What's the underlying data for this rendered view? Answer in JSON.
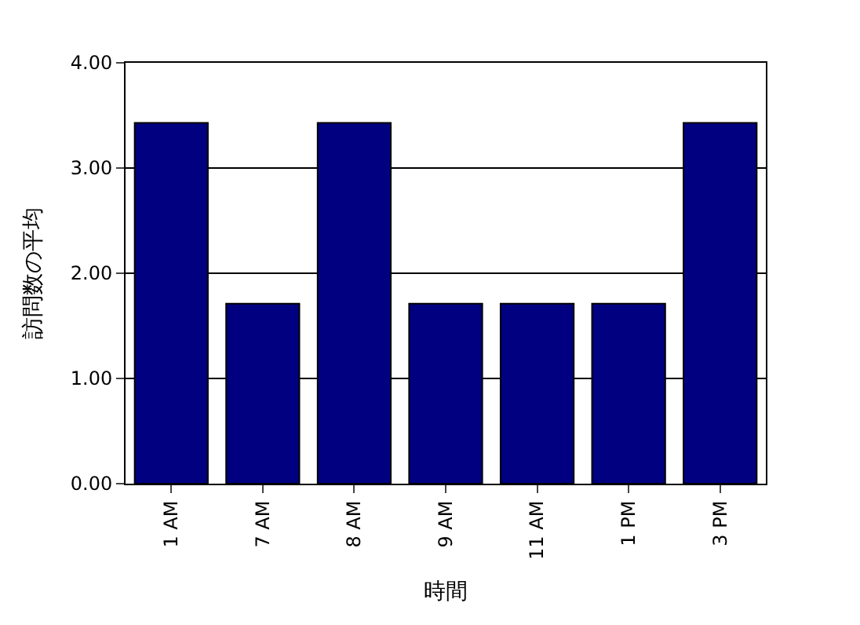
{
  "chart_data": {
    "type": "bar",
    "xlabel": "時間",
    "ylabel": "訪問数の平均",
    "categories": [
      "1 AM",
      "7 AM",
      "8 AM",
      "9 AM",
      "11 AM",
      "1 PM",
      "3 PM"
    ],
    "values": [
      3.43,
      1.71,
      3.43,
      1.71,
      1.71,
      1.71,
      3.43
    ],
    "color": "#000080",
    "ylim": [
      0,
      4
    ],
    "yticks": [
      {
        "value": 0,
        "label": "0.00"
      },
      {
        "value": 1,
        "label": "1.00"
      },
      {
        "value": 2,
        "label": "2.00"
      },
      {
        "value": 3,
        "label": "3.00"
      },
      {
        "value": 4,
        "label": "4.00"
      }
    ],
    "grid": "y"
  }
}
